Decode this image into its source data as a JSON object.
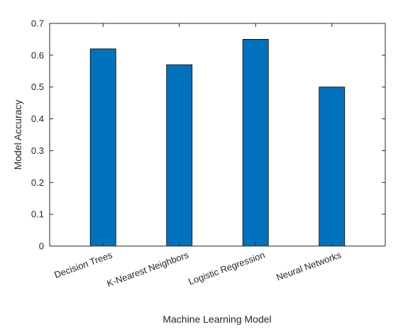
{
  "chart_data": {
    "type": "bar",
    "title": "",
    "xlabel": "Machine Learning Model",
    "ylabel": "Model Accuracy",
    "categories": [
      "Decision Trees",
      "K-Nearest Neighbors",
      "Logistic Regression",
      "Neural Networks"
    ],
    "values": [
      0.62,
      0.57,
      0.65,
      0.5
    ],
    "ylim": [
      0,
      0.7
    ],
    "yticks": [
      0,
      0.1,
      0.2,
      0.3,
      0.4,
      0.5,
      0.6,
      0.7
    ],
    "ytick_labels": [
      "0",
      "0.1",
      "0.2",
      "0.3",
      "0.4",
      "0.5",
      "0.6",
      "0.7"
    ],
    "grid": false,
    "legend": "none",
    "bar_color": "#0072BD",
    "axis_color": "#262626"
  }
}
